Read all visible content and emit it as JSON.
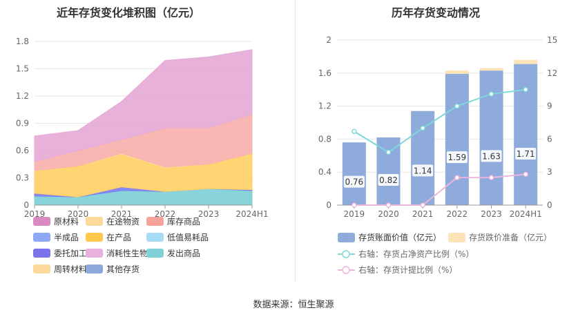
{
  "footer": {
    "source": "数据来源：恒生聚源"
  },
  "chart_data": [
    {
      "type": "area",
      "stacked": true,
      "title": "近年存货变化堆积图（亿元）",
      "categories": [
        "2019",
        "2020",
        "2021",
        "2022",
        "2023",
        "2024H1"
      ],
      "y_ticks": [
        "0",
        "0.3",
        "0.6",
        "0.9",
        "1.2",
        "1.5",
        "1.8"
      ],
      "ylim": [
        0,
        1.8
      ],
      "series": [
        {
          "name": "发出商品",
          "color": "#7fd0d8",
          "values": [
            0.1,
            0.09,
            0.16,
            0.15,
            0.18,
            0.16
          ]
        },
        {
          "name": "委托加工材料",
          "color": "#7b7ff0",
          "values": [
            0.03,
            0.0,
            0.04,
            0.0,
            0.0,
            0.01
          ]
        },
        {
          "name": "在产品",
          "color": "#ffd066",
          "values": [
            0.25,
            0.34,
            0.36,
            0.26,
            0.27,
            0.4
          ]
        },
        {
          "name": "周转材料",
          "color": "#fdd99a",
          "values": [
            0.0,
            0.0,
            0.01,
            0.01,
            0.0,
            0.0
          ]
        },
        {
          "name": "库存商品",
          "color": "#f9b1ad",
          "values": [
            0.1,
            0.17,
            0.15,
            0.43,
            0.4,
            0.43
          ]
        },
        {
          "name": "消耗性生物资产",
          "color": "#e6aad6",
          "values": [
            0.28,
            0.22,
            0.42,
            0.74,
            0.78,
            0.71
          ]
        }
      ],
      "legend": [
        {
          "name": "原材料",
          "color": "#d98ac0"
        },
        {
          "name": "在途物资",
          "color": "#fdd99a"
        },
        {
          "name": "库存商品",
          "color": "#f7a39b"
        },
        {
          "name": "半成品",
          "color": "#8ea8f5"
        },
        {
          "name": "在产品",
          "color": "#ffc94d"
        },
        {
          "name": "低值易耗品",
          "color": "#a7dcf7"
        },
        {
          "name": "委托加工材料",
          "color": "#7b73ec"
        },
        {
          "name": "消耗性生物资产",
          "color": "#e8b0dc"
        },
        {
          "name": "发出商品",
          "color": "#7fd3d8"
        },
        {
          "name": "周转材料",
          "color": "#fdd99a"
        },
        {
          "name": "其他存货",
          "color": "#8ca8dc"
        }
      ]
    },
    {
      "type": "bar",
      "title": "历年存货变动情况",
      "categories": [
        "2019",
        "2020",
        "2021",
        "2022",
        "2023",
        "2024H1"
      ],
      "y_ticks_left": [
        "0",
        "0.4",
        "0.8",
        "1.2",
        "1.6",
        "2"
      ],
      "ylim_left": [
        0,
        2
      ],
      "y_ticks_right": [
        "0",
        "3",
        "6",
        "9",
        "12",
        "15"
      ],
      "ylim_right": [
        0,
        15
      ],
      "series": [
        {
          "name": "存货账面价值（亿元）",
          "color": "#8eabdb",
          "values": [
            0.76,
            0.82,
            1.14,
            1.59,
            1.63,
            1.71
          ],
          "labels": [
            "0.76",
            "0.82",
            "1.14",
            "1.59",
            "1.63",
            "1.71"
          ]
        },
        {
          "name": "存货跌价准备（亿元）",
          "color": "#fde3b8",
          "values": [
            0,
            0,
            0,
            0.04,
            0.03,
            0.05
          ]
        }
      ],
      "lines": [
        {
          "name": "右轴：存货占净资产比例（%）",
          "color": "#7fd8d8",
          "values": [
            6.7,
            4.8,
            7.0,
            9.0,
            10.1,
            10.5
          ]
        },
        {
          "name": "右轴：存货计提比例（%）",
          "color": "#ecb6dc",
          "values": [
            0.0,
            0.0,
            0.0,
            2.5,
            2.5,
            2.8
          ]
        }
      ]
    }
  ]
}
